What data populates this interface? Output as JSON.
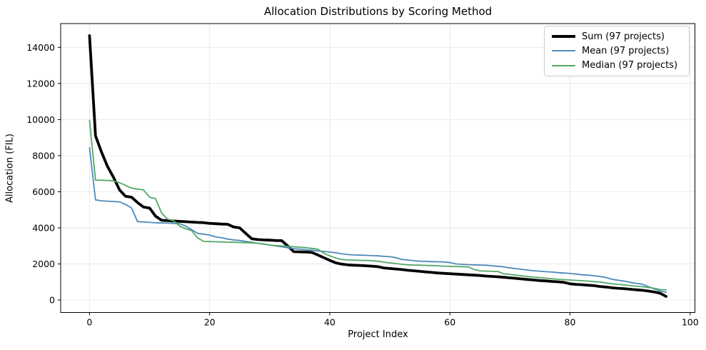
{
  "figure": {
    "background": "#ffffff",
    "spine_color": "#000000",
    "text_color": "#000000"
  },
  "chart_data": {
    "type": "line",
    "title": "Allocation Distributions by Scoring Method",
    "xlabel": "Project Index",
    "ylabel": "Allocation (FIL)",
    "grid": true,
    "grid_color": "#e7e7e7",
    "legend_position": "upper right",
    "xlim": [
      -4.8,
      100.8
    ],
    "ylim": [
      -690,
      15320
    ],
    "xticks": [
      0,
      20,
      40,
      60,
      80,
      100
    ],
    "yticks": [
      0,
      2000,
      4000,
      6000,
      8000,
      10000,
      12000,
      14000
    ],
    "x": [
      0,
      1,
      2,
      3,
      4,
      5,
      6,
      7,
      8,
      9,
      10,
      11,
      12,
      13,
      14,
      15,
      16,
      17,
      18,
      19,
      20,
      21,
      22,
      23,
      24,
      25,
      26,
      27,
      28,
      29,
      30,
      31,
      32,
      33,
      34,
      35,
      36,
      37,
      38,
      39,
      40,
      41,
      42,
      43,
      44,
      45,
      46,
      47,
      48,
      49,
      50,
      51,
      52,
      53,
      54,
      55,
      56,
      57,
      58,
      59,
      60,
      61,
      62,
      63,
      64,
      65,
      66,
      67,
      68,
      69,
      70,
      71,
      72,
      73,
      74,
      75,
      76,
      77,
      78,
      79,
      80,
      81,
      82,
      83,
      84,
      85,
      86,
      87,
      88,
      89,
      90,
      91,
      92,
      93,
      94,
      95,
      96
    ],
    "series": [
      {
        "name": "Sum (97 projects)",
        "color": "#000000",
        "line_width": 3.8,
        "values": [
          14650,
          9100,
          8200,
          7400,
          6800,
          6100,
          5750,
          5700,
          5400,
          5150,
          5100,
          4650,
          4420,
          4400,
          4380,
          4360,
          4340,
          4320,
          4300,
          4290,
          4250,
          4230,
          4210,
          4200,
          4050,
          4000,
          3700,
          3400,
          3350,
          3330,
          3320,
          3300,
          3290,
          3000,
          2680,
          2670,
          2660,
          2640,
          2500,
          2350,
          2200,
          2060,
          1990,
          1950,
          1930,
          1920,
          1900,
          1880,
          1850,
          1780,
          1750,
          1720,
          1690,
          1650,
          1620,
          1590,
          1560,
          1530,
          1500,
          1480,
          1460,
          1440,
          1420,
          1400,
          1380,
          1360,
          1330,
          1310,
          1290,
          1260,
          1230,
          1200,
          1170,
          1140,
          1110,
          1080,
          1060,
          1030,
          1010,
          980,
          900,
          870,
          850,
          820,
          800,
          750,
          720,
          680,
          650,
          630,
          600,
          570,
          540,
          500,
          450,
          380,
          200
        ]
      },
      {
        "name": "Mean (97 projects)",
        "color": "#4e89ba",
        "line_width": 1.8,
        "values": [
          8450,
          5550,
          5500,
          5480,
          5460,
          5440,
          5300,
          5100,
          4350,
          4330,
          4300,
          4280,
          4270,
          4260,
          4250,
          4230,
          4100,
          3900,
          3700,
          3650,
          3600,
          3500,
          3450,
          3380,
          3330,
          3300,
          3250,
          3200,
          3150,
          3100,
          3050,
          3000,
          2950,
          2900,
          2850,
          2820,
          2780,
          2760,
          2720,
          2700,
          2660,
          2620,
          2560,
          2520,
          2500,
          2490,
          2480,
          2460,
          2450,
          2420,
          2400,
          2350,
          2250,
          2220,
          2180,
          2150,
          2140,
          2130,
          2120,
          2110,
          2080,
          2000,
          1980,
          1960,
          1950,
          1940,
          1930,
          1900,
          1870,
          1840,
          1780,
          1740,
          1700,
          1660,
          1620,
          1600,
          1570,
          1550,
          1520,
          1500,
          1470,
          1440,
          1400,
          1380,
          1350,
          1300,
          1250,
          1150,
          1100,
          1050,
          980,
          930,
          880,
          750,
          620,
          500,
          430
        ]
      },
      {
        "name": "Median (97 projects)",
        "color": "#52a866",
        "line_width": 1.8,
        "values": [
          9950,
          6650,
          6640,
          6630,
          6600,
          6500,
          6350,
          6200,
          6150,
          6100,
          5700,
          5620,
          4820,
          4480,
          4400,
          4100,
          3950,
          3850,
          3450,
          3250,
          3240,
          3230,
          3220,
          3210,
          3200,
          3190,
          3180,
          3170,
          3150,
          3100,
          3050,
          3020,
          3000,
          2980,
          2950,
          2930,
          2900,
          2860,
          2820,
          2600,
          2450,
          2330,
          2250,
          2220,
          2210,
          2200,
          2190,
          2180,
          2150,
          2100,
          2060,
          2020,
          1980,
          1950,
          1940,
          1930,
          1920,
          1910,
          1900,
          1880,
          1870,
          1860,
          1850,
          1840,
          1700,
          1620,
          1600,
          1590,
          1580,
          1450,
          1420,
          1380,
          1340,
          1300,
          1270,
          1240,
          1210,
          1180,
          1150,
          1130,
          1110,
          1090,
          1070,
          1050,
          1020,
          1000,
          950,
          900,
          870,
          840,
          800,
          770,
          740,
          700,
          650,
          580,
          560
        ]
      }
    ]
  }
}
